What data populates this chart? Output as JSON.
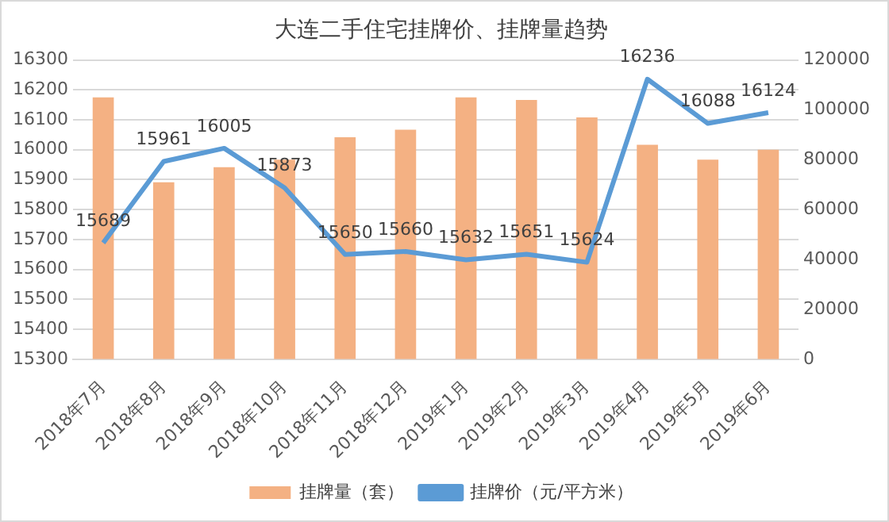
{
  "chart_data": {
    "type": "bar",
    "title": "大连二手住宅挂牌价、挂牌量趋势",
    "categories": [
      "2018年7月",
      "2018年8月",
      "2018年9月",
      "2018年10月",
      "2018年11月",
      "2018年12月",
      "2019年1月",
      "2019年2月",
      "2019年3月",
      "2019年4月",
      "2019年5月",
      "2019年6月"
    ],
    "series": [
      {
        "name": "挂牌量（套）",
        "axis": "y2",
        "color": "#f4b183",
        "values": [
          105000,
          71000,
          77000,
          80000,
          89000,
          92000,
          105000,
          104000,
          97000,
          86000,
          80000,
          84000
        ]
      },
      {
        "name": "挂牌价（元/平方米）",
        "type": "line",
        "axis": "y",
        "color": "#5b9bd5",
        "values": [
          15689,
          15961,
          16005,
          15873,
          15650,
          15660,
          15632,
          15651,
          15624,
          16236,
          16088,
          16124
        ],
        "value_labels": [
          "15689",
          "15961",
          "16005",
          "15873",
          "15650",
          "15660",
          "15632",
          "15651",
          "15624",
          "16236",
          "16088",
          "16124"
        ]
      }
    ],
    "ylim": [
      15300,
      16300
    ],
    "yticks": [
      15300,
      15400,
      15500,
      15600,
      15700,
      15800,
      15900,
      16000,
      16100,
      16200,
      16300
    ],
    "y2lim": [
      0,
      120000
    ],
    "y2ticks": [
      0,
      20000,
      40000,
      60000,
      80000,
      100000,
      120000
    ],
    "grid": "y",
    "legend": "bottom",
    "marker": "none",
    "line_style": "solid"
  }
}
